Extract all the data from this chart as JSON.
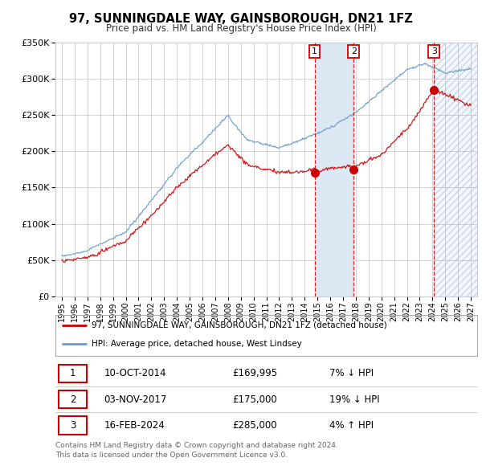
{
  "title": "97, SUNNINGDALE WAY, GAINSBOROUGH, DN21 1FZ",
  "subtitle": "Price paid vs. HM Land Registry's House Price Index (HPI)",
  "legend_property": "97, SUNNINGDALE WAY, GAINSBOROUGH, DN21 1FZ (detached house)",
  "legend_hpi": "HPI: Average price, detached house, West Lindsey",
  "transactions": [
    {
      "num": 1,
      "date": "10-OCT-2014",
      "price": 169995,
      "pct": "7%",
      "dir": "↓",
      "x_year": 2014.78
    },
    {
      "num": 2,
      "date": "03-NOV-2017",
      "price": 175000,
      "pct": "19%",
      "dir": "↓",
      "x_year": 2017.84
    },
    {
      "num": 3,
      "date": "16-FEB-2024",
      "price": 285000,
      "pct": "4%",
      "dir": "↑",
      "x_year": 2024.12
    }
  ],
  "footer": "Contains HM Land Registry data © Crown copyright and database right 2024.\nThis data is licensed under the Open Government Licence v3.0.",
  "ylim": [
    0,
    350000
  ],
  "yticks": [
    0,
    50000,
    100000,
    150000,
    200000,
    250000,
    300000,
    350000
  ],
  "xlim": [
    1994.5,
    2027.5
  ],
  "property_color": "#cc0000",
  "hpi_color": "#6699cc",
  "background_color": "#ffffff",
  "grid_color": "#cccccc",
  "table_border_color": "#cc0000",
  "vline_color": "#cc0000",
  "shade_color": "#dce9f5"
}
